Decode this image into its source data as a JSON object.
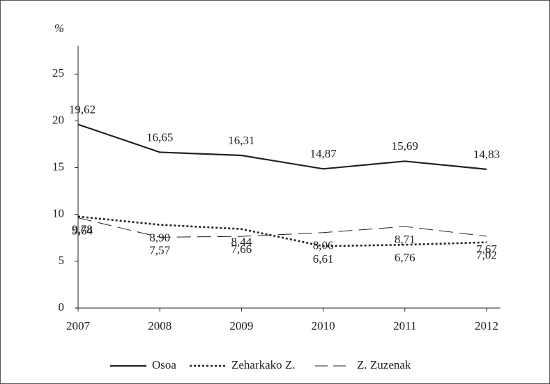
{
  "chart_data": {
    "type": "line",
    "y_label": "%",
    "categories": [
      "2007",
      "2008",
      "2009",
      "2010",
      "2011",
      "2012"
    ],
    "series": [
      {
        "name": "Osoa",
        "color": "#222222",
        "line_style": "solid",
        "values": [
          19.62,
          16.65,
          16.31,
          14.87,
          15.69,
          14.83
        ],
        "value_labels": [
          "19,62",
          "16,65",
          "16,31",
          "14,87",
          "15,69",
          "14,83"
        ]
      },
      {
        "name": "Zeharkako Z.",
        "color": "#222222",
        "line_style": "dotted",
        "values": [
          9.78,
          8.9,
          8.44,
          6.61,
          6.76,
          7.02
        ],
        "value_labels": [
          "9,78",
          "8,90",
          "8,44",
          "6,61",
          "6,76",
          "7,02"
        ]
      },
      {
        "name": "Z. Zuzenak",
        "color": "#222222",
        "line_style": "dashed",
        "values": [
          9.64,
          7.57,
          7.66,
          8.06,
          8.71,
          7.67
        ],
        "value_labels": [
          "9,64",
          "7,57",
          "7,66",
          "8,06",
          "8,71",
          "7,67"
        ]
      }
    ],
    "ylim": [
      0,
      28
    ],
    "yticks": [
      0,
      5,
      10,
      15,
      20,
      25
    ],
    "legend": "bottom"
  }
}
